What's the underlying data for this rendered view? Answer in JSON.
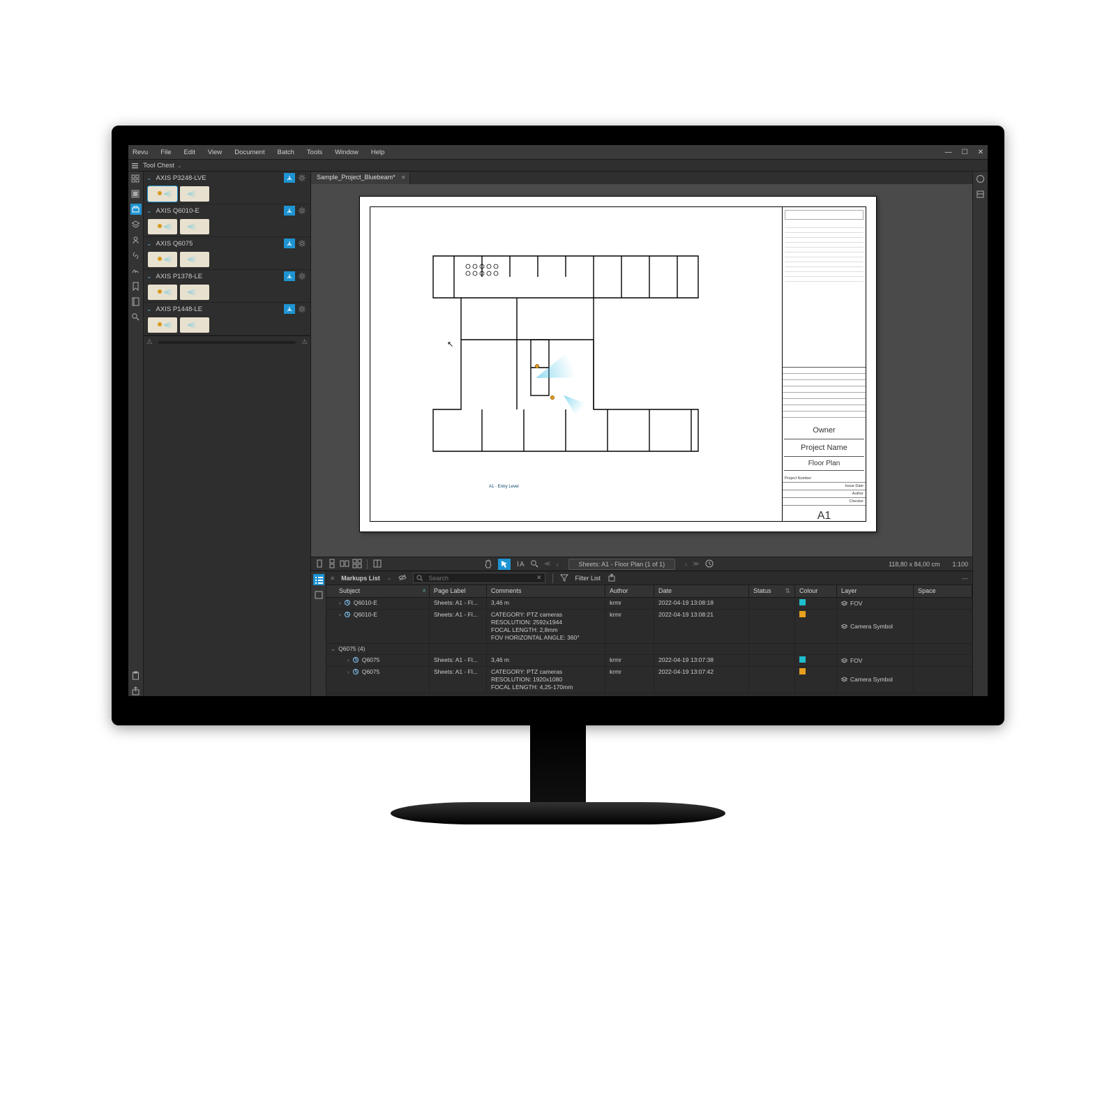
{
  "menu": {
    "items": [
      "Revu",
      "File",
      "Edit",
      "View",
      "Document",
      "Batch",
      "Tools",
      "Window",
      "Help"
    ]
  },
  "window_controls": [
    "—",
    "☐",
    "✕"
  ],
  "panel_title": "Tool Chest",
  "tool_chest_groups": [
    {
      "label": "AXIS P3248-LVE"
    },
    {
      "label": "AXIS Q6010-E"
    },
    {
      "label": "AXIS Q6075"
    },
    {
      "label": "AXIS P1378-LE"
    },
    {
      "label": "AXIS P1448-LE"
    }
  ],
  "document": {
    "tab_label": "Sample_Project_Bluebeam*",
    "titleblock": {
      "owner": "Owner",
      "project": "Project Name",
      "sheet_title": "Floor Plan",
      "rows": [
        [
          "Project Number",
          ""
        ],
        [
          "",
          "Issue Date"
        ],
        [
          "",
          "Author"
        ],
        [
          "",
          "Checker"
        ]
      ],
      "sheet_no": "A1"
    },
    "entry_label": "A1 - Entry Level"
  },
  "viewbar": {
    "sheet_indicator": "Sheets: A1 - Floor Plan (1 of 1)",
    "dimensions": "118,80 x 84,00 cm",
    "scale": "1:100"
  },
  "markups": {
    "title": "Markups List",
    "search_placeholder": "Search",
    "filter_label": "Filter List",
    "columns": [
      "Subject",
      "Page Label",
      "Comments",
      "Author",
      "Date",
      "Status",
      "Colour",
      "Layer",
      "Space"
    ],
    "rows": [
      {
        "type": "item",
        "indent": 1,
        "subject": "Q6010-E",
        "page": "Sheets: A1 - Fl...",
        "comments": "3,46 m",
        "author": "krmr",
        "date": "2022-04-19 13:08:18",
        "colour": "teal",
        "layer": "FOV"
      },
      {
        "type": "item",
        "indent": 1,
        "subject": "Q6010-E",
        "page": "Sheets: A1 - Fl...",
        "comments": "CATEGORY: PTZ cameras\nRESOLUTION: 2592x1944\nFOCAL LENGTH: 2,8mm\nFOV HORIZONTAL ANGLE: 360°",
        "author": "krmr",
        "date": "2022-04-19 13:08:21",
        "colour": "amber",
        "layer": "Camera Symbol"
      },
      {
        "type": "group",
        "subject": "Q6075 (4)"
      },
      {
        "type": "item",
        "indent": 2,
        "subject": "Q6075",
        "page": "Sheets: A1 - Fl...",
        "comments": "3,46 m",
        "author": "krmr",
        "date": "2022-04-19 13:07:38",
        "colour": "teal",
        "layer": "FOV"
      },
      {
        "type": "item",
        "indent": 2,
        "subject": "Q6075",
        "page": "Sheets: A1 - Fl...",
        "comments": "CATEGORY: PTZ cameras\nRESOLUTION: 1920x1080\nFOCAL LENGTH: 4,25-170mm",
        "author": "krmr",
        "date": "2022-04-19 13:07:42",
        "colour": "amber",
        "layer": "Camera Symbol"
      }
    ]
  },
  "colors": {
    "accent": "#1e94d2",
    "teal": "#1fbecd",
    "amber": "#e6a01e",
    "bg_dark": "#2a2a2a"
  }
}
